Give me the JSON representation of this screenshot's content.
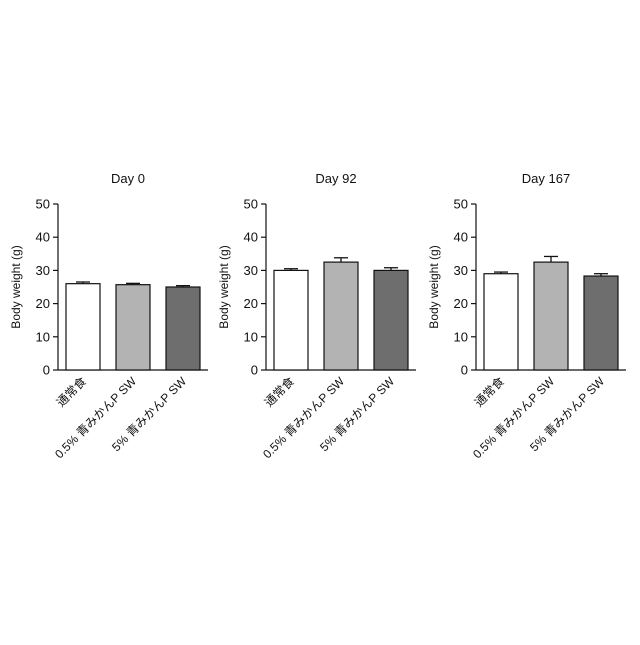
{
  "chart_data": [
    {
      "type": "bar",
      "title": "Day 0",
      "ylabel": "Body weight (g)",
      "ylim": [
        0,
        50
      ],
      "yticks": [
        0,
        10,
        20,
        30,
        40,
        50
      ],
      "categories": [
        "通常食",
        "0.5% 青みかんP SW",
        "5% 青みかんP SW"
      ],
      "values": [
        26,
        25.7,
        25
      ],
      "errors": [
        0.5,
        0.4,
        0.4
      ],
      "bar_colors": [
        "#ffffff",
        "#b3b3b3",
        "#6e6e6e"
      ]
    },
    {
      "type": "bar",
      "title": "Day 92",
      "ylabel": "Body weight (g)",
      "ylim": [
        0,
        50
      ],
      "yticks": [
        0,
        10,
        20,
        30,
        40,
        50
      ],
      "categories": [
        "通常食",
        "0.5% 青みかんP SW",
        "5% 青みかんP SW"
      ],
      "values": [
        30,
        32.5,
        30
      ],
      "errors": [
        0.5,
        1.3,
        0.8
      ],
      "bar_colors": [
        "#ffffff",
        "#b3b3b3",
        "#6e6e6e"
      ]
    },
    {
      "type": "bar",
      "title": "Day 167",
      "ylabel": "Body weight (g)",
      "ylim": [
        0,
        50
      ],
      "yticks": [
        0,
        10,
        20,
        30,
        40,
        50
      ],
      "categories": [
        "通常食",
        "0.5% 青みかんP SW",
        "5% 青みかんP SW"
      ],
      "values": [
        29,
        32.5,
        28.3
      ],
      "errors": [
        0.5,
        1.7,
        0.7
      ],
      "bar_colors": [
        "#ffffff",
        "#b3b3b3",
        "#6e6e6e"
      ]
    }
  ]
}
